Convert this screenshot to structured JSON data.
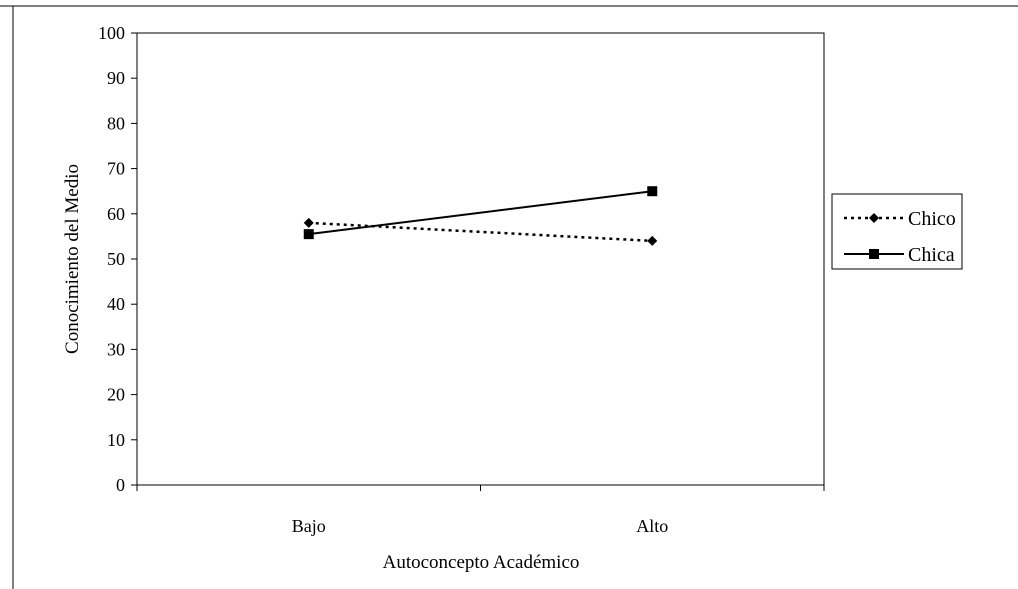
{
  "chart_data": {
    "type": "line",
    "title": "",
    "xlabel": "Autoconcepto Académico",
    "ylabel": "Conocimiento del Medio",
    "categories": [
      "Bajo",
      "Alto"
    ],
    "ylim": [
      0,
      100
    ],
    "yticks": [
      0,
      10,
      20,
      30,
      40,
      50,
      60,
      70,
      80,
      90,
      100
    ],
    "grid": false,
    "legend_position": "right",
    "series": [
      {
        "name": "Chico",
        "values": [
          58,
          54
        ],
        "marker": "diamond",
        "line_style": "dotted",
        "color": "#000000"
      },
      {
        "name": "Chica",
        "values": [
          55.5,
          65
        ],
        "marker": "square",
        "line_style": "solid",
        "color": "#000000"
      }
    ]
  }
}
